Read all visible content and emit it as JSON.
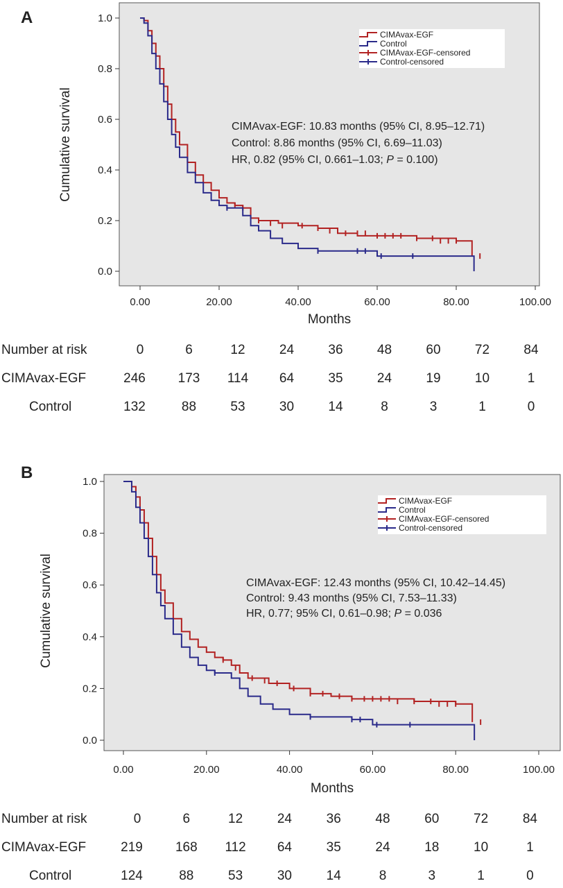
{
  "chart_data": [
    {
      "panel": "A",
      "type": "line",
      "xlabel": "Months",
      "ylabel": "Cumulative survival",
      "xlim": [
        0,
        100
      ],
      "ylim": [
        0,
        1
      ],
      "x_ticks": [
        "0.00",
        "20.00",
        "40.00",
        "60.00",
        "80.00",
        "100.00"
      ],
      "y_ticks": [
        "0.0",
        "0.2",
        "0.4",
        "0.6",
        "0.8",
        "1.0"
      ],
      "legend_position": "top-right",
      "legend": [
        "CIMAvax-EGF",
        "Control",
        "CIMAvax-EGF-censored",
        "Control-censored"
      ],
      "annotations": [
        "CIMAvax-EGF: 10.83 months (95% CI, 8.95–12.71)",
        "Control: 8.86 months (95% CI, 6.69–11.03)",
        "HR, 0.82 (95% CI, 0.661–1.03; P = 0.100)"
      ],
      "series": [
        {
          "name": "CIMAvax-EGF",
          "color": "#b22222",
          "x": [
            0,
            1,
            2,
            3,
            4,
            5,
            6,
            7,
            8,
            9,
            10,
            12,
            14,
            16,
            18,
            20,
            22,
            24,
            26,
            28,
            30,
            35,
            40,
            45,
            50,
            55,
            60,
            65,
            70,
            75,
            80,
            83.5,
            84
          ],
          "y": [
            1.0,
            0.99,
            0.95,
            0.9,
            0.85,
            0.8,
            0.73,
            0.66,
            0.6,
            0.55,
            0.5,
            0.43,
            0.38,
            0.35,
            0.32,
            0.29,
            0.27,
            0.26,
            0.25,
            0.21,
            0.2,
            0.19,
            0.18,
            0.17,
            0.15,
            0.14,
            0.14,
            0.14,
            0.13,
            0.13,
            0.12,
            0.12,
            0.06
          ],
          "censored": {
            "x": [
              24,
              26,
              30,
              33,
              36,
              41,
              45,
              48,
              52,
              55,
              57,
              60,
              62,
              64,
              66,
              70,
              74,
              76,
              78,
              80,
              86
            ],
            "y": [
              0.26,
              0.25,
              0.2,
              0.19,
              0.18,
              0.18,
              0.17,
              0.16,
              0.15,
              0.15,
              0.15,
              0.14,
              0.14,
              0.14,
              0.14,
              0.13,
              0.13,
              0.12,
              0.12,
              0.12,
              0.06
            ]
          }
        },
        {
          "name": "Control",
          "color": "#2a2a8a",
          "x": [
            0,
            1,
            2,
            3,
            4,
            5,
            6,
            7,
            8,
            9,
            10,
            12,
            14,
            16,
            18,
            20,
            22,
            24,
            26,
            28,
            30,
            33,
            36,
            40,
            45,
            50,
            55,
            60,
            65,
            70,
            75,
            80,
            84,
            84.5
          ],
          "y": [
            1.0,
            0.98,
            0.93,
            0.86,
            0.8,
            0.74,
            0.67,
            0.6,
            0.54,
            0.49,
            0.45,
            0.39,
            0.35,
            0.31,
            0.28,
            0.26,
            0.25,
            0.25,
            0.22,
            0.18,
            0.16,
            0.13,
            0.11,
            0.09,
            0.08,
            0.08,
            0.08,
            0.06,
            0.06,
            0.06,
            0.06,
            0.06,
            0.06,
            0.0
          ],
          "censored": {
            "x": [
              22,
              45,
              55,
              57,
              61,
              69
            ],
            "y": [
              0.25,
              0.08,
              0.08,
              0.08,
              0.06,
              0.06
            ]
          }
        }
      ],
      "risk_table": {
        "header_label": "Number at risk",
        "times": [
          "0",
          "6",
          "12",
          "24",
          "36",
          "48",
          "60",
          "72",
          "84"
        ],
        "rows": [
          {
            "label": "CIMAvax-EGF",
            "values": [
              "246",
              "173",
              "114",
              "64",
              "35",
              "24",
              "19",
              "10",
              "1"
            ]
          },
          {
            "label": "Control",
            "values": [
              "132",
              "88",
              "53",
              "30",
              "14",
              "8",
              "3",
              "1",
              "0"
            ]
          }
        ]
      }
    },
    {
      "panel": "B",
      "type": "line",
      "xlabel": "Months",
      "ylabel": "Cumulative survival",
      "xlim": [
        0,
        100
      ],
      "ylim": [
        0,
        1
      ],
      "x_ticks": [
        "0.00",
        "20.00",
        "40.00",
        "60.00",
        "80.00",
        "100.00"
      ],
      "y_ticks": [
        "0.0",
        "0.2",
        "0.4",
        "0.6",
        "0.8",
        "1.0"
      ],
      "legend_position": "top-right",
      "legend": [
        "CIMAvax-EGF",
        "Control",
        "CIMAvax-EGF-censored",
        "Control-censored"
      ],
      "annotations": [
        "CIMAvax-EGF: 12.43 months (95% CI, 10.42–14.45)",
        "Control: 9.43 months (95% CI, 7.53–11.33)",
        "HR, 0.77; 95% CI, 0.61–0.98; P = 0.036"
      ],
      "series": [
        {
          "name": "CIMAvax-EGF",
          "color": "#b22222",
          "x": [
            0,
            1,
            2,
            3,
            4,
            5,
            6,
            7,
            8,
            9,
            10,
            12,
            14,
            16,
            18,
            20,
            22,
            24,
            26,
            28,
            30,
            35,
            40,
            45,
            50,
            55,
            60,
            65,
            70,
            75,
            80,
            83.5,
            84
          ],
          "y": [
            1.0,
            1.0,
            0.98,
            0.94,
            0.89,
            0.84,
            0.78,
            0.71,
            0.64,
            0.58,
            0.53,
            0.47,
            0.42,
            0.39,
            0.36,
            0.34,
            0.32,
            0.31,
            0.29,
            0.26,
            0.24,
            0.22,
            0.2,
            0.18,
            0.17,
            0.16,
            0.16,
            0.16,
            0.15,
            0.15,
            0.14,
            0.14,
            0.07
          ],
          "censored": {
            "x": [
              24,
              27,
              31,
              34,
              37,
              41,
              45,
              48,
              52,
              55,
              58,
              60,
              62,
              64,
              66,
              70,
              74,
              76,
              78,
              80,
              86
            ],
            "y": [
              0.31,
              0.28,
              0.24,
              0.23,
              0.22,
              0.2,
              0.18,
              0.18,
              0.17,
              0.16,
              0.16,
              0.16,
              0.16,
              0.16,
              0.15,
              0.15,
              0.15,
              0.14,
              0.14,
              0.14,
              0.07
            ]
          }
        },
        {
          "name": "Control",
          "color": "#2a2a8a",
          "x": [
            0,
            1,
            2,
            3,
            4,
            5,
            6,
            7,
            8,
            9,
            10,
            12,
            14,
            16,
            18,
            20,
            22,
            24,
            26,
            28,
            30,
            33,
            36,
            40,
            45,
            50,
            55,
            60,
            65,
            70,
            75,
            80,
            84,
            84.5
          ],
          "y": [
            1.0,
            1.0,
            0.96,
            0.9,
            0.84,
            0.78,
            0.71,
            0.64,
            0.57,
            0.52,
            0.47,
            0.41,
            0.36,
            0.32,
            0.29,
            0.27,
            0.26,
            0.26,
            0.24,
            0.2,
            0.17,
            0.14,
            0.12,
            0.1,
            0.09,
            0.09,
            0.08,
            0.06,
            0.06,
            0.06,
            0.06,
            0.06,
            0.06,
            0.0
          ],
          "censored": {
            "x": [
              22,
              45,
              55,
              57,
              61,
              69
            ],
            "y": [
              0.26,
              0.09,
              0.08,
              0.08,
              0.06,
              0.06
            ]
          }
        }
      ],
      "risk_table": {
        "header_label": "Number at risk",
        "times": [
          "0",
          "6",
          "12",
          "24",
          "36",
          "48",
          "60",
          "72",
          "84"
        ],
        "rows": [
          {
            "label": "CIMAvax-EGF",
            "values": [
              "219",
              "168",
              "112",
              "64",
              "35",
              "24",
              "18",
              "10",
              "1"
            ]
          },
          {
            "label": "Control",
            "values": [
              "124",
              "88",
              "53",
              "30",
              "14",
              "8",
              "3",
              "1",
              "0"
            ]
          }
        ]
      }
    }
  ],
  "colors": {
    "plot_background": "#e6e6e6",
    "vaccine": "#b22222",
    "control": "#2a2a8a"
  }
}
